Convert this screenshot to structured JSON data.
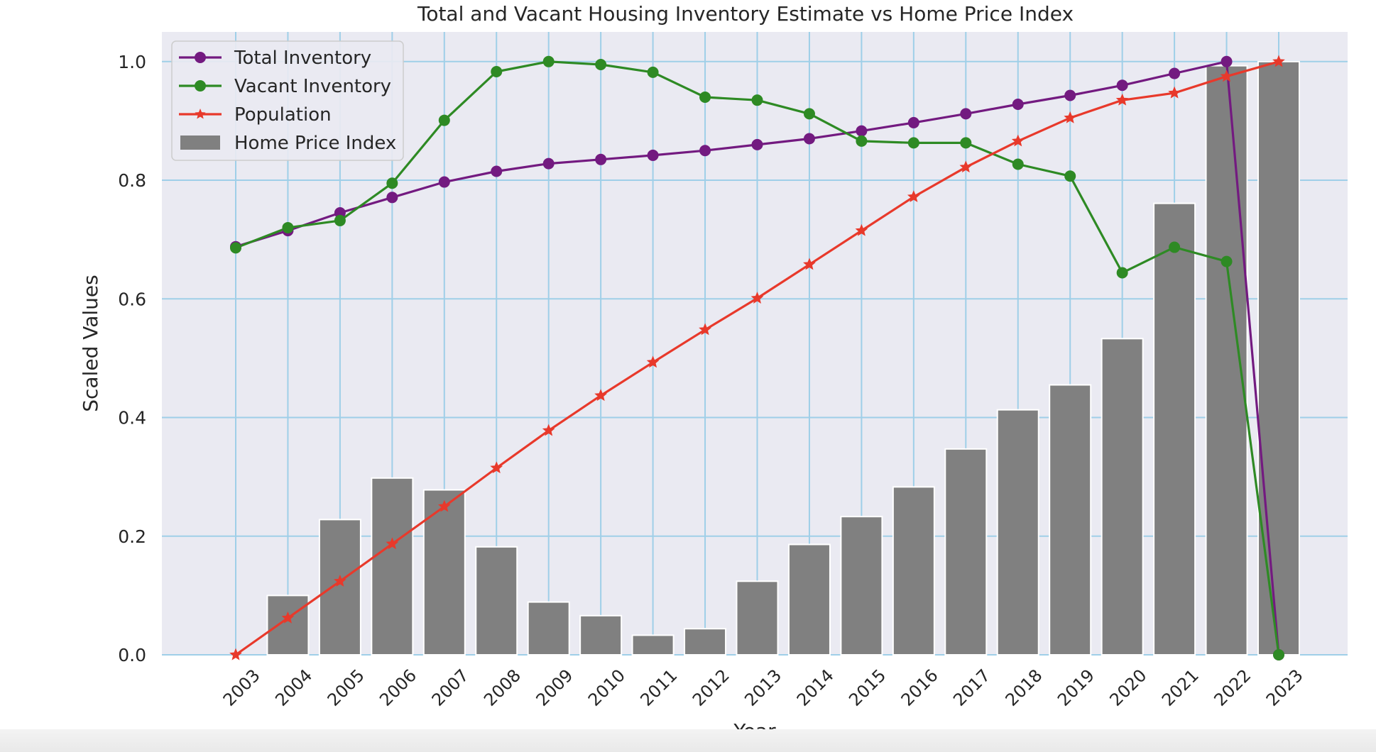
{
  "chart_data": {
    "type": "bar",
    "title": "Total and Vacant Housing Inventory Estimate vs Home Price Index",
    "xlabel": "Year",
    "ylabel": "Scaled Values",
    "categories": [
      "2003",
      "2004",
      "2005",
      "2006",
      "2007",
      "2008",
      "2009",
      "2010",
      "2011",
      "2012",
      "2013",
      "2014",
      "2015",
      "2016",
      "2017",
      "2018",
      "2019",
      "2020",
      "2021",
      "2022",
      "2023"
    ],
    "ylim": [
      0,
      1.05
    ],
    "yticks": [
      "0.0",
      "0.2",
      "0.4",
      "0.6",
      "0.8",
      "1.0"
    ],
    "grid": true,
    "legend_position": "top-left",
    "series": [
      {
        "name": "Total Inventory",
        "kind": "line",
        "marker": "circle",
        "color": "#731a80",
        "values": [
          0.688,
          0.715,
          0.745,
          0.771,
          0.797,
          0.815,
          0.828,
          0.835,
          0.842,
          0.85,
          0.86,
          0.87,
          0.883,
          0.897,
          0.912,
          0.928,
          0.943,
          0.96,
          0.98,
          1.0,
          0.0
        ]
      },
      {
        "name": "Vacant Inventory",
        "kind": "line",
        "marker": "circle",
        "color": "#2e8a24",
        "values": [
          0.686,
          0.72,
          0.732,
          0.795,
          0.901,
          0.983,
          1.0,
          0.995,
          0.982,
          0.94,
          0.935,
          0.912,
          0.866,
          0.863,
          0.863,
          0.827,
          0.807,
          0.644,
          0.687,
          0.663,
          0.0
        ]
      },
      {
        "name": "Population",
        "kind": "line",
        "marker": "star",
        "color": "#e8392b",
        "values": [
          0.0,
          0.062,
          0.124,
          0.187,
          0.25,
          0.315,
          0.378,
          0.437,
          0.493,
          0.548,
          0.601,
          0.658,
          0.715,
          0.772,
          0.822,
          0.866,
          0.905,
          0.935,
          0.947,
          0.975,
          1.0
        ]
      },
      {
        "name": "Home Price Index",
        "kind": "bar",
        "color": "#808080",
        "values": [
          0.0,
          0.1,
          0.228,
          0.298,
          0.278,
          0.182,
          0.089,
          0.066,
          0.033,
          0.044,
          0.124,
          0.186,
          0.233,
          0.283,
          0.347,
          0.413,
          0.455,
          0.533,
          0.761,
          0.993,
          1.0
        ]
      }
    ]
  }
}
